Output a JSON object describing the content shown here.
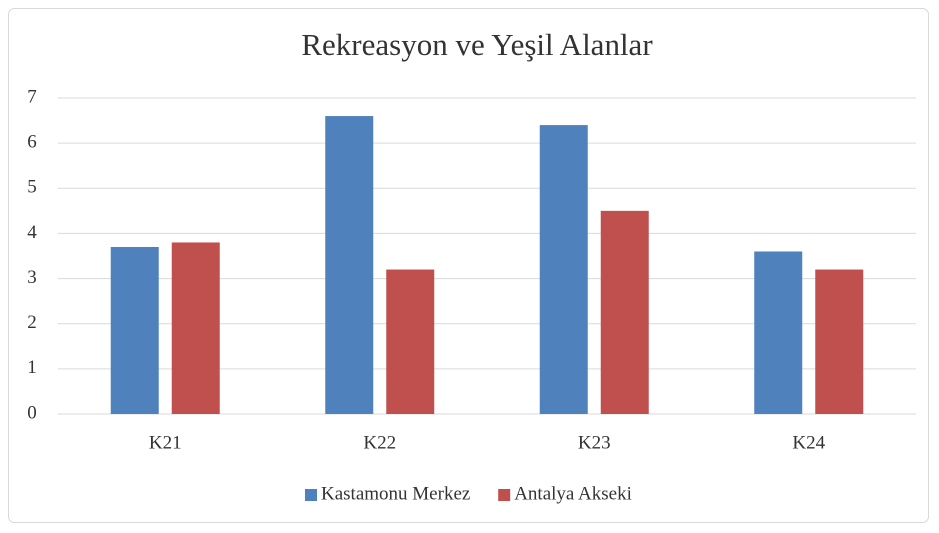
{
  "chart_data": {
    "type": "bar",
    "title": "Rekreasyon ve Yeşil Alanlar",
    "categories": [
      "K21",
      "K22",
      "K23",
      "K24"
    ],
    "series": [
      {
        "name": "Kastamonu Merkez",
        "color": "#4f81bd",
        "values": [
          3.7,
          6.6,
          6.4,
          3.6
        ]
      },
      {
        "name": "Antalya Akseki",
        "color": "#c0504d",
        "values": [
          3.8,
          3.2,
          4.5,
          3.2
        ]
      }
    ],
    "ylim": [
      0,
      7
    ],
    "yticks": [
      0,
      1,
      2,
      3,
      4,
      5,
      6,
      7
    ],
    "grid": true,
    "legend": "bottom"
  }
}
